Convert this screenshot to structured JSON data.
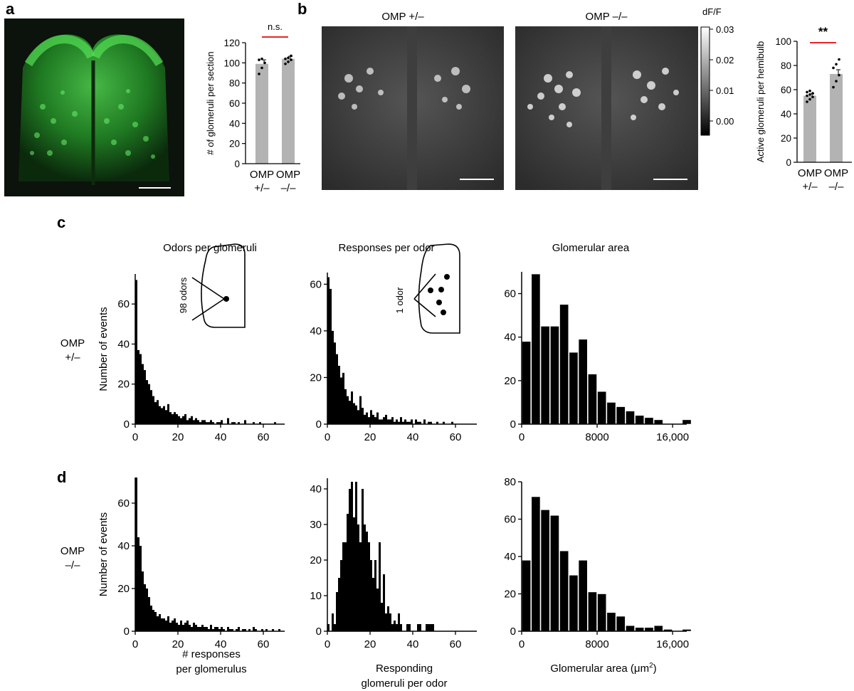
{
  "panel_labels": {
    "a": "a",
    "b": "b",
    "c": "c",
    "d": "d"
  },
  "colors": {
    "green": "#39c739",
    "bar_gray": "#b3b3b3",
    "sig_red": "#e8262a",
    "black": "#000000"
  },
  "panel_a": {
    "image_alt": "Green fluorescence image of olfactory bulb (OMP-GFP)"
  },
  "panel_b": {
    "image_left_title": "OMP +/–",
    "image_right_title": "OMP –/–",
    "colorbar": {
      "title": "dF/F",
      "ticks": [
        "0.03",
        "0.02",
        "0.01",
        "0.00"
      ]
    }
  },
  "headers": {
    "odors_per_glomeruli": "Odors per glomeruli",
    "responses_per_odor": "Responses per odor",
    "glomerular_area": "Glomerular area"
  },
  "row_labels": {
    "c_line1": "OMP",
    "c_line2": "+/–",
    "d_line1": "OMP",
    "d_line2": "–/–"
  },
  "insets": {
    "odors_label": "98 odors",
    "odor_label": "1 odor"
  },
  "xlabels": {
    "col1_line1": "# responses",
    "col1_line2": "per glomerulus",
    "col2_line1": "Responding",
    "col2_line2": "glomeruli per odor",
    "col3_prefix": "Glomerular area (",
    "col3_unit": "μm",
    "col3_sup": "2",
    "col3_suffix": ")"
  },
  "chart_data": [
    {
      "id": "a_bar",
      "type": "bar",
      "categories": [
        "OMP\n+/–",
        "OMP\n–/–"
      ],
      "values": [
        99,
        104
      ],
      "errors": [
        4,
        2.5
      ],
      "points": [
        [
          89,
          95,
          100,
          103,
          104
        ],
        [
          99,
          101,
          103,
          104,
          105,
          107
        ]
      ],
      "ylabel": "# of glomeruli per section",
      "ylim": [
        0,
        120
      ],
      "yticks": [
        "0",
        "20",
        "40",
        "60",
        "80",
        "100",
        "120"
      ],
      "significance": "n.s."
    },
    {
      "id": "b_bar",
      "type": "bar",
      "categories": [
        "OMP\n+/–",
        "OMP\n–/–"
      ],
      "values": [
        55,
        73
      ],
      "errors": [
        1.5,
        3.5
      ],
      "points": [
        [
          50,
          52,
          54,
          55,
          56,
          57,
          58,
          59
        ],
        [
          62,
          67,
          72,
          78,
          81,
          85
        ]
      ],
      "ylabel": "Active glomeruli per hemibulb",
      "ylim": [
        0,
        100
      ],
      "yticks": [
        "0",
        "20",
        "40",
        "60",
        "80",
        "100"
      ],
      "significance": "**"
    },
    {
      "id": "c1",
      "type": "bar",
      "x_start": 0,
      "bin_width": 1,
      "values": [
        72,
        37,
        35,
        30,
        27,
        22,
        20,
        17,
        14,
        11,
        12,
        9,
        8,
        9,
        7,
        10,
        6,
        5,
        6,
        5,
        4,
        3,
        4,
        5,
        2,
        3,
        4,
        2,
        3,
        2,
        1,
        2,
        2,
        1,
        1,
        2,
        1,
        0,
        1,
        1,
        2,
        0,
        0,
        3,
        0,
        1,
        1,
        0,
        1,
        0,
        0,
        2,
        0,
        0,
        0,
        1,
        0,
        0,
        1,
        0,
        0,
        0,
        0,
        0,
        0,
        1
      ],
      "xlim": [
        0,
        70
      ],
      "ylim": [
        0,
        75
      ],
      "xticks": [
        "0",
        "20",
        "40",
        "60"
      ],
      "yticks": [
        "0",
        "20",
        "40",
        "60"
      ],
      "ylabel": "Number of events"
    },
    {
      "id": "c2",
      "type": "bar",
      "x_start": 0,
      "bin_width": 1,
      "values": [
        63,
        58,
        40,
        35,
        30,
        25,
        20,
        22,
        15,
        12,
        10,
        14,
        9,
        8,
        6,
        12,
        7,
        4,
        5,
        3,
        6,
        4,
        3,
        5,
        2,
        2,
        3,
        4,
        2,
        2,
        3,
        1,
        2,
        1,
        3,
        1,
        2,
        1,
        1,
        2,
        0,
        2,
        1,
        1,
        0,
        2,
        0,
        1,
        1,
        0,
        0,
        1,
        0,
        0,
        1,
        0,
        0,
        0,
        1
      ],
      "xlim": [
        0,
        70
      ],
      "ylim": [
        0,
        65
      ],
      "xticks": [
        "0",
        "20",
        "40",
        "60"
      ],
      "yticks": [
        "0",
        "20",
        "40",
        "60"
      ]
    },
    {
      "id": "c3",
      "type": "bar",
      "x_start": 0,
      "bin_width": 1000,
      "values": [
        38,
        69,
        45,
        45,
        55,
        33,
        39,
        23,
        15,
        10,
        8,
        6,
        4,
        3,
        2,
        0,
        0,
        2
      ],
      "xlim": [
        0,
        17500
      ],
      "ylim": [
        0,
        70
      ],
      "xticks": [
        "0",
        "8000",
        "16,000"
      ],
      "yticks": [
        "0",
        "20",
        "40",
        "60"
      ]
    },
    {
      "id": "d1",
      "type": "bar",
      "x_start": 0,
      "bin_width": 1,
      "values": [
        72,
        44,
        40,
        28,
        22,
        20,
        16,
        12,
        10,
        9,
        7,
        8,
        6,
        6,
        5,
        7,
        4,
        5,
        6,
        4,
        3,
        5,
        3,
        4,
        5,
        3,
        2,
        4,
        3,
        2,
        2,
        3,
        2,
        2,
        1,
        3,
        1,
        2,
        2,
        1,
        2,
        1,
        0,
        2,
        1,
        1,
        0,
        1,
        2,
        0,
        1,
        1,
        0,
        1,
        0,
        2,
        1,
        0,
        0,
        1,
        0,
        1,
        0,
        0,
        1,
        0,
        0,
        1,
        0,
        0
      ],
      "xlim": [
        0,
        70
      ],
      "ylim": [
        0,
        72
      ],
      "xticks": [
        "0",
        "20",
        "40",
        "60"
      ],
      "yticks": [
        "0",
        "20",
        "40",
        "60"
      ],
      "ylabel": "Number of events"
    },
    {
      "id": "d2",
      "type": "bar",
      "x_start": 0,
      "bin_width": 1,
      "values": [
        2,
        0,
        5,
        2,
        11,
        15,
        20,
        25,
        25,
        33,
        40,
        42,
        32,
        42,
        30,
        25,
        40,
        30,
        28,
        25,
        20,
        15,
        20,
        12,
        25,
        8,
        16,
        5,
        7,
        5,
        2,
        3,
        2,
        5,
        2,
        0,
        0,
        2,
        2,
        0,
        0,
        0,
        2,
        2,
        0,
        0,
        2,
        2,
        2,
        2,
        0
      ],
      "xlim": [
        0,
        70
      ],
      "ylim": [
        0,
        43
      ],
      "xticks": [
        "0",
        "20",
        "40",
        "60"
      ],
      "yticks": [
        "0",
        "10",
        "20",
        "30",
        "40"
      ]
    },
    {
      "id": "d3",
      "type": "bar",
      "x_start": 0,
      "bin_width": 1000,
      "values": [
        38,
        72,
        65,
        62,
        43,
        30,
        38,
        21,
        20,
        10,
        8,
        3,
        2,
        2,
        3,
        1,
        0,
        1
      ],
      "xlim": [
        0,
        17500
      ],
      "ylim": [
        0,
        80
      ],
      "xticks": [
        "0",
        "8000",
        "16,000"
      ],
      "yticks": [
        "0",
        "20",
        "40",
        "60",
        "80"
      ]
    }
  ]
}
